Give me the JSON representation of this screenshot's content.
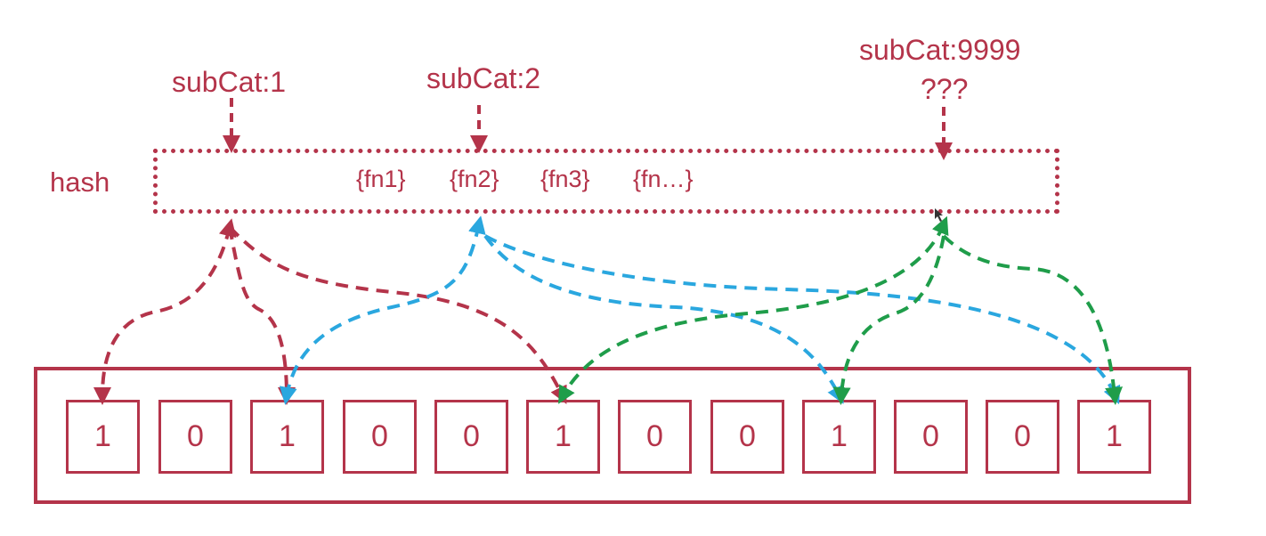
{
  "hash_label": "hash",
  "keys": [
    {
      "id": "sub1",
      "label": "subCat:1"
    },
    {
      "id": "sub2",
      "label": "subCat:2"
    },
    {
      "id": "sub9999",
      "label": "subCat:9999",
      "note": "???"
    }
  ],
  "functions": [
    "{fn1}",
    "{fn2}",
    "{fn3}",
    "{fn…}"
  ],
  "bits": [
    "1",
    "0",
    "1",
    "0",
    "0",
    "1",
    "0",
    "0",
    "1",
    "0",
    "0",
    "1"
  ],
  "colors": {
    "primary": "#b4344a",
    "blue": "#2aa7df",
    "green": "#1f9d4a"
  }
}
